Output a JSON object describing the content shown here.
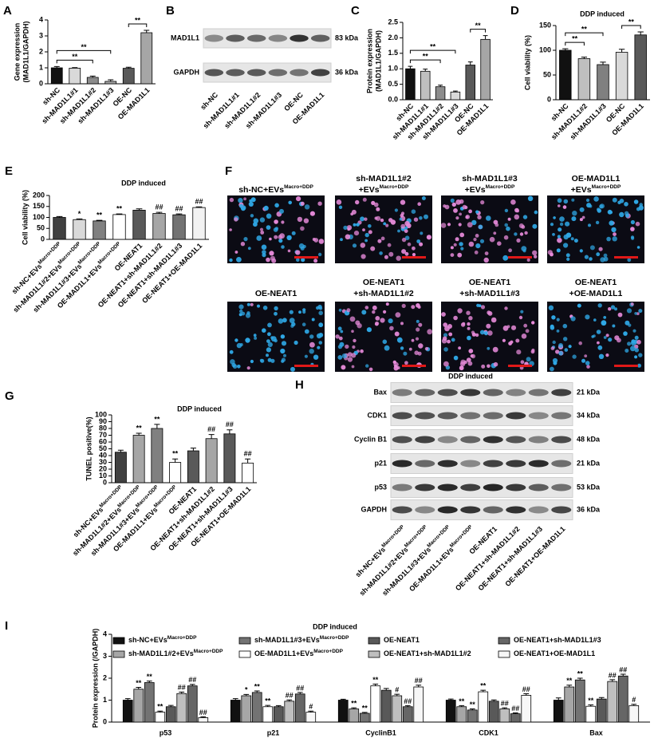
{
  "chart_data": [
    {
      "type": "bar",
      "panel": "A",
      "ylabel": [
        "Gene expression",
        "(MAD1L1/GAPDH)"
      ],
      "categories": [
        "sh-NC",
        "sh-MAD1L1#1",
        "sh-MAD1L1#2",
        "sh-MAD1L1#3",
        "OE-NC",
        "OE-MAD1L1"
      ],
      "values": [
        1.0,
        0.98,
        0.4,
        0.15,
        0.97,
        3.2
      ],
      "errors": [
        0.08,
        0.03,
        0.08,
        0.1,
        0.07,
        0.15
      ],
      "colors": [
        "#111111",
        "#d9d9d9",
        "#8c8c8c",
        "#a6a6a6",
        "#595959",
        "#a6a6a6"
      ],
      "ylim": [
        0,
        4
      ],
      "yticks": [
        0,
        1,
        2,
        3,
        4
      ],
      "brackets": [
        {
          "label": "**",
          "between": [
            "sh-NC",
            "sh-MAD1L1#2"
          ]
        },
        {
          "label": "**",
          "between": [
            "sh-NC",
            "sh-MAD1L1#3"
          ]
        },
        {
          "label": "**",
          "between": [
            "OE-NC",
            "OE-MAD1L1"
          ]
        }
      ]
    },
    {
      "type": "bar",
      "panel": "C",
      "ylabel": [
        "Protein expression",
        "(MAD1L1/GAPDH)"
      ],
      "categories": [
        "sh-NC",
        "sh-MAD1L1#1",
        "sh-MAD1L1#2",
        "sh-MAD1L1#3",
        "OE-NC",
        "OE-MAD1L1"
      ],
      "values": [
        1.0,
        0.92,
        0.42,
        0.25,
        1.12,
        1.95
      ],
      "errors": [
        0.08,
        0.07,
        0.05,
        0.03,
        0.1,
        0.12
      ],
      "colors": [
        "#111111",
        "#bfbfbf",
        "#8c8c8c",
        "#d9d9d9",
        "#595959",
        "#a6a6a6"
      ],
      "ylim": [
        0,
        2.5
      ],
      "yticks": [
        {
          "value": 0,
          "label": "0.0"
        },
        0.5,
        {
          "value": 1,
          "label": "1.0"
        },
        1.5,
        {
          "value": 2,
          "label": "2.0"
        },
        2.5
      ],
      "brackets": [
        {
          "label": "**",
          "between": [
            "sh-NC",
            "sh-MAD1L1#2"
          ]
        },
        {
          "label": "**",
          "between": [
            "sh-NC",
            "sh-MAD1L1#3"
          ]
        },
        {
          "label": "**",
          "between": [
            "OE-NC",
            "OE-MAD1L1"
          ]
        }
      ]
    },
    {
      "type": "bar",
      "panel": "D",
      "title": "DDP induced",
      "ylabel": [
        "Cell viability (%)"
      ],
      "categories": [
        "sh-NC",
        "sh-MAD1L1#2",
        "sh-MAD1L1#3",
        "OE-NC",
        "OE-MAD1L1"
      ],
      "values": [
        100,
        83,
        71,
        96,
        131
      ],
      "errors": [
        3,
        3,
        5,
        6,
        6
      ],
      "colors": [
        "#111111",
        "#bfbfbf",
        "#808080",
        "#d9d9d9",
        "#595959"
      ],
      "ylim": [
        0,
        150
      ],
      "yticks": [
        0,
        50,
        100,
        150
      ],
      "brackets": [
        {
          "label": "**",
          "between": [
            "sh-NC",
            "sh-MAD1L1#2"
          ]
        },
        {
          "label": "**",
          "between": [
            "sh-NC",
            "sh-MAD1L1#3"
          ]
        },
        {
          "label": "**",
          "between": [
            "OE-NC",
            "OE-MAD1L1"
          ]
        }
      ]
    },
    {
      "type": "bar",
      "panel": "E",
      "title": "DDP induced",
      "ylabel": [
        "Cell viability (%)"
      ],
      "categories": [
        "sh-NC+EVs",
        "sh-MAD1L1#2+EVs",
        "sh-MAD1L1#3+EVs",
        "OE-MAD1L1+EVs",
        "OE-NEAT1",
        "OE-NEAT1+sh-MAD1L1#2",
        "OE-NEAT1+sh-MAD1L1#3",
        "OE-NEAT1+OE-MAD1L1"
      ],
      "category_superscripts": [
        "Macro+DDP",
        "Macro+DDP",
        "Macro+DDP",
        "Macro+DDP",
        null,
        null,
        null,
        null
      ],
      "values": [
        100,
        90,
        84,
        113,
        133,
        118,
        112,
        145
      ],
      "errors": [
        4,
        3,
        3,
        3,
        6,
        5,
        4,
        3
      ],
      "significance": [
        null,
        "*",
        "**",
        "**",
        null,
        "##",
        "##",
        "##"
      ],
      "colors": [
        "#404040",
        "#d9d9d9",
        "#808080",
        "#ffffff",
        "#595959",
        "#a6a6a6",
        "#737373",
        "#f2f2f2"
      ],
      "ylim": [
        0,
        200
      ],
      "yticks": [
        0,
        50,
        100,
        150,
        200
      ]
    },
    {
      "type": "bar",
      "panel": "G",
      "title": "DDP induced",
      "ylabel": [
        "TUNEL positive(%)"
      ],
      "categories": [
        "sh-NC+EVs",
        "sh-MAD1L1#2+EVs",
        "sh-MAD1L1#3+EVs",
        "OE-MAD1L1+EVs",
        "OE-NEAT1",
        "OE-NEAT1+sh-MAD1L1#2",
        "OE-NEAT1+sh-MAD1L1#3",
        "OE-NEAT1+OE-MAD1L1"
      ],
      "category_superscripts": [
        "Macro+DDP",
        "Macro+DDP",
        "Macro+DDP",
        "Macro+DDP",
        null,
        null,
        null,
        null
      ],
      "values": [
        45,
        70,
        80,
        30,
        47,
        65,
        72,
        29
      ],
      "errors": [
        3,
        3,
        6,
        5,
        4,
        6,
        6,
        6
      ],
      "significance": [
        null,
        "**",
        "**",
        "**",
        null,
        "##",
        "##",
        "##"
      ],
      "colors": [
        "#404040",
        "#a6a6a6",
        "#808080",
        "#ffffff",
        "#595959",
        "#a6a6a6",
        "#595959",
        "#ffffff"
      ],
      "ylim": [
        0,
        100
      ],
      "yticks": [
        0,
        10,
        20,
        30,
        40,
        50,
        60,
        70,
        80,
        90,
        100
      ]
    },
    {
      "type": "grouped_bar",
      "panel": "I",
      "title": "DDP induced",
      "ylabel": [
        "Protein expression (/GAPDH)"
      ],
      "categories": [
        "p53",
        "p21",
        "CyclinB1",
        "CDK1",
        "Bax"
      ],
      "ylim": [
        0,
        4
      ],
      "yticks": [
        0,
        1,
        2,
        3,
        4
      ],
      "series": [
        {
          "name": "sh-NC+EVs",
          "name_superscript": "Macro+DDP",
          "color": "#111111",
          "values": [
            1.0,
            1.0,
            1.0,
            1.0,
            1.0
          ],
          "errors": [
            0.07,
            0.07,
            0.04,
            0.05,
            0.1
          ],
          "significance": [
            null,
            null,
            null,
            null,
            null
          ]
        },
        {
          "name": "sh-MAD1L1#2+EVs",
          "name_superscript": "Macro+DDP",
          "color": "#a6a6a6",
          "values": [
            1.5,
            1.2,
            0.6,
            0.7,
            1.6
          ],
          "errors": [
            0.08,
            0.06,
            0.05,
            0.05,
            0.08
          ],
          "significance": [
            "**",
            "*",
            "**",
            "**",
            "**"
          ]
        },
        {
          "name": "sh-MAD1L1#3+EVs",
          "name_superscript": "Macro+DDP",
          "color": "#737373",
          "values": [
            1.8,
            1.35,
            0.4,
            0.55,
            1.92
          ],
          "errors": [
            0.07,
            0.07,
            0.04,
            0.05,
            0.08
          ],
          "significance": [
            "**",
            "**",
            "**",
            "**",
            "**"
          ]
        },
        {
          "name": "OE-MAD1L1+EVs",
          "name_superscript": "Macro+DDP",
          "color": "#ffffff",
          "values": [
            0.45,
            0.7,
            1.65,
            1.38,
            0.72
          ],
          "errors": [
            0.05,
            0.06,
            0.08,
            0.07,
            0.06
          ],
          "significance": [
            "**",
            "**",
            "**",
            "**",
            "**"
          ]
        },
        {
          "name": "OE-NEAT1",
          "color": "#595959",
          "values": [
            0.7,
            0.7,
            1.45,
            0.95,
            1.05
          ],
          "errors": [
            0.06,
            0.05,
            0.08,
            0.06,
            0.07
          ],
          "significance": [
            null,
            null,
            null,
            null,
            null
          ]
        },
        {
          "name": "OE-NEAT1+sh-MAD1L1#2",
          "color": "#bfbfbf",
          "values": [
            1.3,
            0.95,
            1.2,
            0.6,
            1.85
          ],
          "errors": [
            0.07,
            0.06,
            0.07,
            0.05,
            0.08
          ],
          "significance": [
            "##",
            "##",
            "#",
            "##",
            "##"
          ]
        },
        {
          "name": "OE-NEAT1+sh-MAD1L1#3",
          "color": "#666666",
          "values": [
            1.65,
            1.28,
            0.7,
            0.38,
            2.1
          ],
          "errors": [
            0.07,
            0.07,
            0.05,
            0.04,
            0.08
          ],
          "significance": [
            "##",
            "##",
            "##",
            "##",
            "##"
          ]
        },
        {
          "name": "OE-NEAT1+OE-MAD1L1",
          "color": "#f7f7f7",
          "values": [
            0.2,
            0.45,
            1.6,
            1.22,
            0.75
          ],
          "errors": [
            0.04,
            0.05,
            0.08,
            0.07,
            0.06
          ],
          "significance": [
            "##",
            "#",
            "##",
            "##",
            "#"
          ]
        }
      ]
    }
  ],
  "blots": [
    {
      "panel": "B",
      "rows": [
        {
          "label": "MAD1L1",
          "size": "83 kDa"
        },
        {
          "label": "GAPDH",
          "size": "36 kDa"
        }
      ],
      "lanes": [
        "sh-NC",
        "sh-MAD1L1#1",
        "sh-MAD1L1#2",
        "sh-MAD1L1#3",
        "OE-NC",
        "OE-MAD1L1"
      ]
    },
    {
      "panel": "H",
      "title": "DDP induced",
      "rows": [
        {
          "label": "Bax",
          "size": "21 kDa"
        },
        {
          "label": "CDK1",
          "size": "34 kDa"
        },
        {
          "label": "Cyclin B1",
          "size": "48 kDa"
        },
        {
          "label": "p21",
          "size": "21 kDa"
        },
        {
          "label": "p53",
          "size": "53 kDa"
        },
        {
          "label": "GAPDH",
          "size": "36 kDa"
        }
      ],
      "lanes": [
        "sh-NC+EVs",
        "sh-MAD1L1#2+EVs",
        "sh-MAD1L1#3+EVs",
        "OE-MAD1L1+EVs",
        "OE-NEAT1",
        "OE-NEAT1+sh-MAD1L1#2",
        "OE-NEAT1+sh-MAD1L1#3",
        "OE-NEAT1+OE-MAD1L1"
      ],
      "lane_superscripts": [
        "Macro+DDP",
        "Macro+DDP",
        "Macro+DDP",
        "Macro+DDP",
        null,
        null,
        null,
        null
      ]
    }
  ],
  "micrographs": {
    "panel": "F",
    "items": [
      {
        "lines": [
          "sh-NC+EVs"
        ],
        "superscript": "Macro+DDP"
      },
      {
        "lines": [
          "sh-MAD1L1#2",
          "+EVs"
        ],
        "superscript": "Macro+DDP"
      },
      {
        "lines": [
          "sh-MAD1L1#3",
          "+EVs"
        ],
        "superscript": "Macro+DDP"
      },
      {
        "lines": [
          "OE-MAD1L1",
          "+EVs"
        ],
        "superscript": "Macro+DDP"
      },
      {
        "lines": [
          "OE-NEAT1"
        ]
      },
      {
        "lines": [
          "OE-NEAT1",
          "+sh-MAD1L1#2"
        ]
      },
      {
        "lines": [
          "OE-NEAT1",
          "+sh-MAD1L1#3"
        ]
      },
      {
        "lines": [
          "OE-NEAT1",
          "+OE-MAD1L1"
        ]
      }
    ]
  }
}
